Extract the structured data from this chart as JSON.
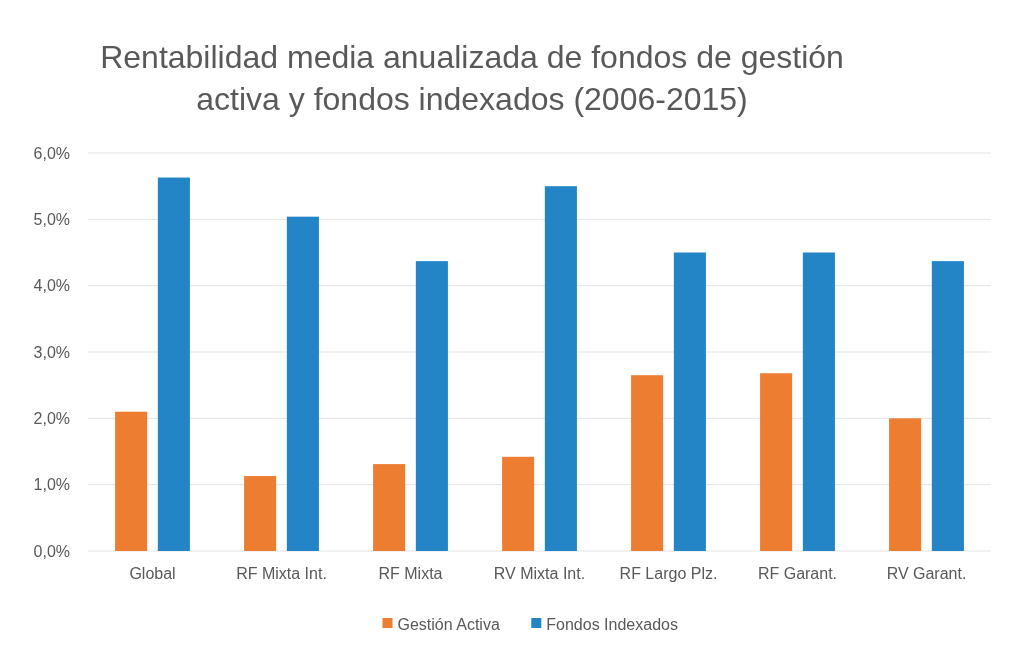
{
  "chart_data": {
    "type": "bar",
    "title": "Rentabilidad media anualizada de fondos de gestión activa y fondos indexados (2006-2015)",
    "categories": [
      "Global",
      "RF Mixta Int.",
      "RF Mixta",
      "RV Mixta Int.",
      "RF Largo Plz.",
      "RF Garant.",
      "RV Garant."
    ],
    "series": [
      {
        "name": "Gestión Activa",
        "color": "#ed7d31",
        "values": [
          2.1,
          1.13,
          1.31,
          1.42,
          2.65,
          2.68,
          2.0
        ]
      },
      {
        "name": "Fondos Indexados",
        "color": "#2384c6",
        "values": [
          5.63,
          5.04,
          4.37,
          5.5,
          4.5,
          4.5,
          4.37
        ]
      }
    ],
    "ylim": [
      0,
      6
    ],
    "yticks": [
      {
        "value": 0,
        "label": "0,0%"
      },
      {
        "value": 1,
        "label": "1,0%"
      },
      {
        "value": 2,
        "label": "2,0%"
      },
      {
        "value": 3,
        "label": "3,0%"
      },
      {
        "value": 4,
        "label": "4,0%"
      },
      {
        "value": 5,
        "label": "5,0%"
      },
      {
        "value": 6,
        "label": "6,0%"
      }
    ],
    "grid": "y",
    "legend": "bottom"
  }
}
